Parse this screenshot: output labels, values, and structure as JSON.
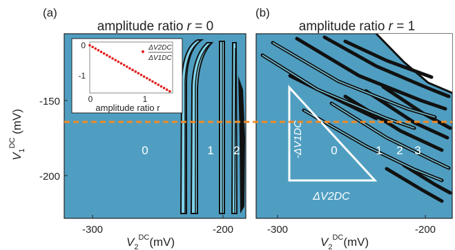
{
  "panels": [
    {
      "label": "(a)",
      "title": "amplitude ratio r = 0",
      "title_main": "amplitude ratio ",
      "title_r": "r",
      "title_eq": " = 0",
      "region_labels": [
        "0",
        "1",
        "2"
      ],
      "x_ticks": [
        "-300",
        "-200"
      ],
      "y_ticks": [
        "-150",
        "-200"
      ]
    },
    {
      "label": "(b)",
      "title": "amplitude ratio r = 1",
      "title_main": "amplitude ratio ",
      "title_r": "r",
      "title_eq": " = 1",
      "region_labels": [
        "0",
        "1",
        "2",
        "3"
      ],
      "x_ticks": [
        "-300",
        "-200"
      ]
    }
  ],
  "axis_labels": {
    "y": "V1DC (mV)",
    "x_a": "V2DC (mV)",
    "x_b": "V2DC (mV)"
  },
  "inset": {
    "y_ticks": [
      "0",
      "-1"
    ],
    "x_ticks": [
      "0",
      "1"
    ],
    "xlabel": "amplitude ratio r",
    "legend_numerator": "ΔV2DC",
    "legend_denominator": "ΔV1DC"
  },
  "triangle_labels": {
    "vertical": "-ΔV1DC",
    "horizontal": "ΔV2DC"
  },
  "colors": {
    "background_region": "#4f9ec1",
    "transition_line": "#111111",
    "light_band": "#7fd3ea",
    "dashed_line": "#f08a24",
    "inset_points": "#e32020"
  },
  "chart_data": {
    "type": "scatter",
    "title": "",
    "xlabel": "amplitude ratio r",
    "ylabel": "ΔV2DC / ΔV1DC",
    "xlim": [
      0,
      1.45
    ],
    "ylim": [
      -1.45,
      0.1
    ],
    "series": [
      {
        "x": [
          0.0,
          0.05,
          0.1,
          0.15,
          0.2,
          0.25,
          0.3,
          0.35,
          0.4,
          0.45,
          0.5,
          0.55,
          0.6,
          0.65,
          0.7,
          0.75,
          0.8,
          0.85,
          0.9,
          0.95,
          1.0,
          1.05,
          1.1,
          1.15,
          1.2,
          1.25,
          1.3,
          1.35,
          1.4
        ],
        "y": [
          0.0,
          -0.05,
          -0.1,
          -0.15,
          -0.2,
          -0.25,
          -0.3,
          -0.35,
          -0.4,
          -0.45,
          -0.5,
          -0.55,
          -0.6,
          -0.65,
          -0.7,
          -0.75,
          -0.8,
          -0.85,
          -0.9,
          -0.95,
          -1.0,
          -1.05,
          -1.1,
          -1.15,
          -1.2,
          -1.25,
          -1.3,
          -1.35,
          -1.4
        ]
      }
    ]
  }
}
